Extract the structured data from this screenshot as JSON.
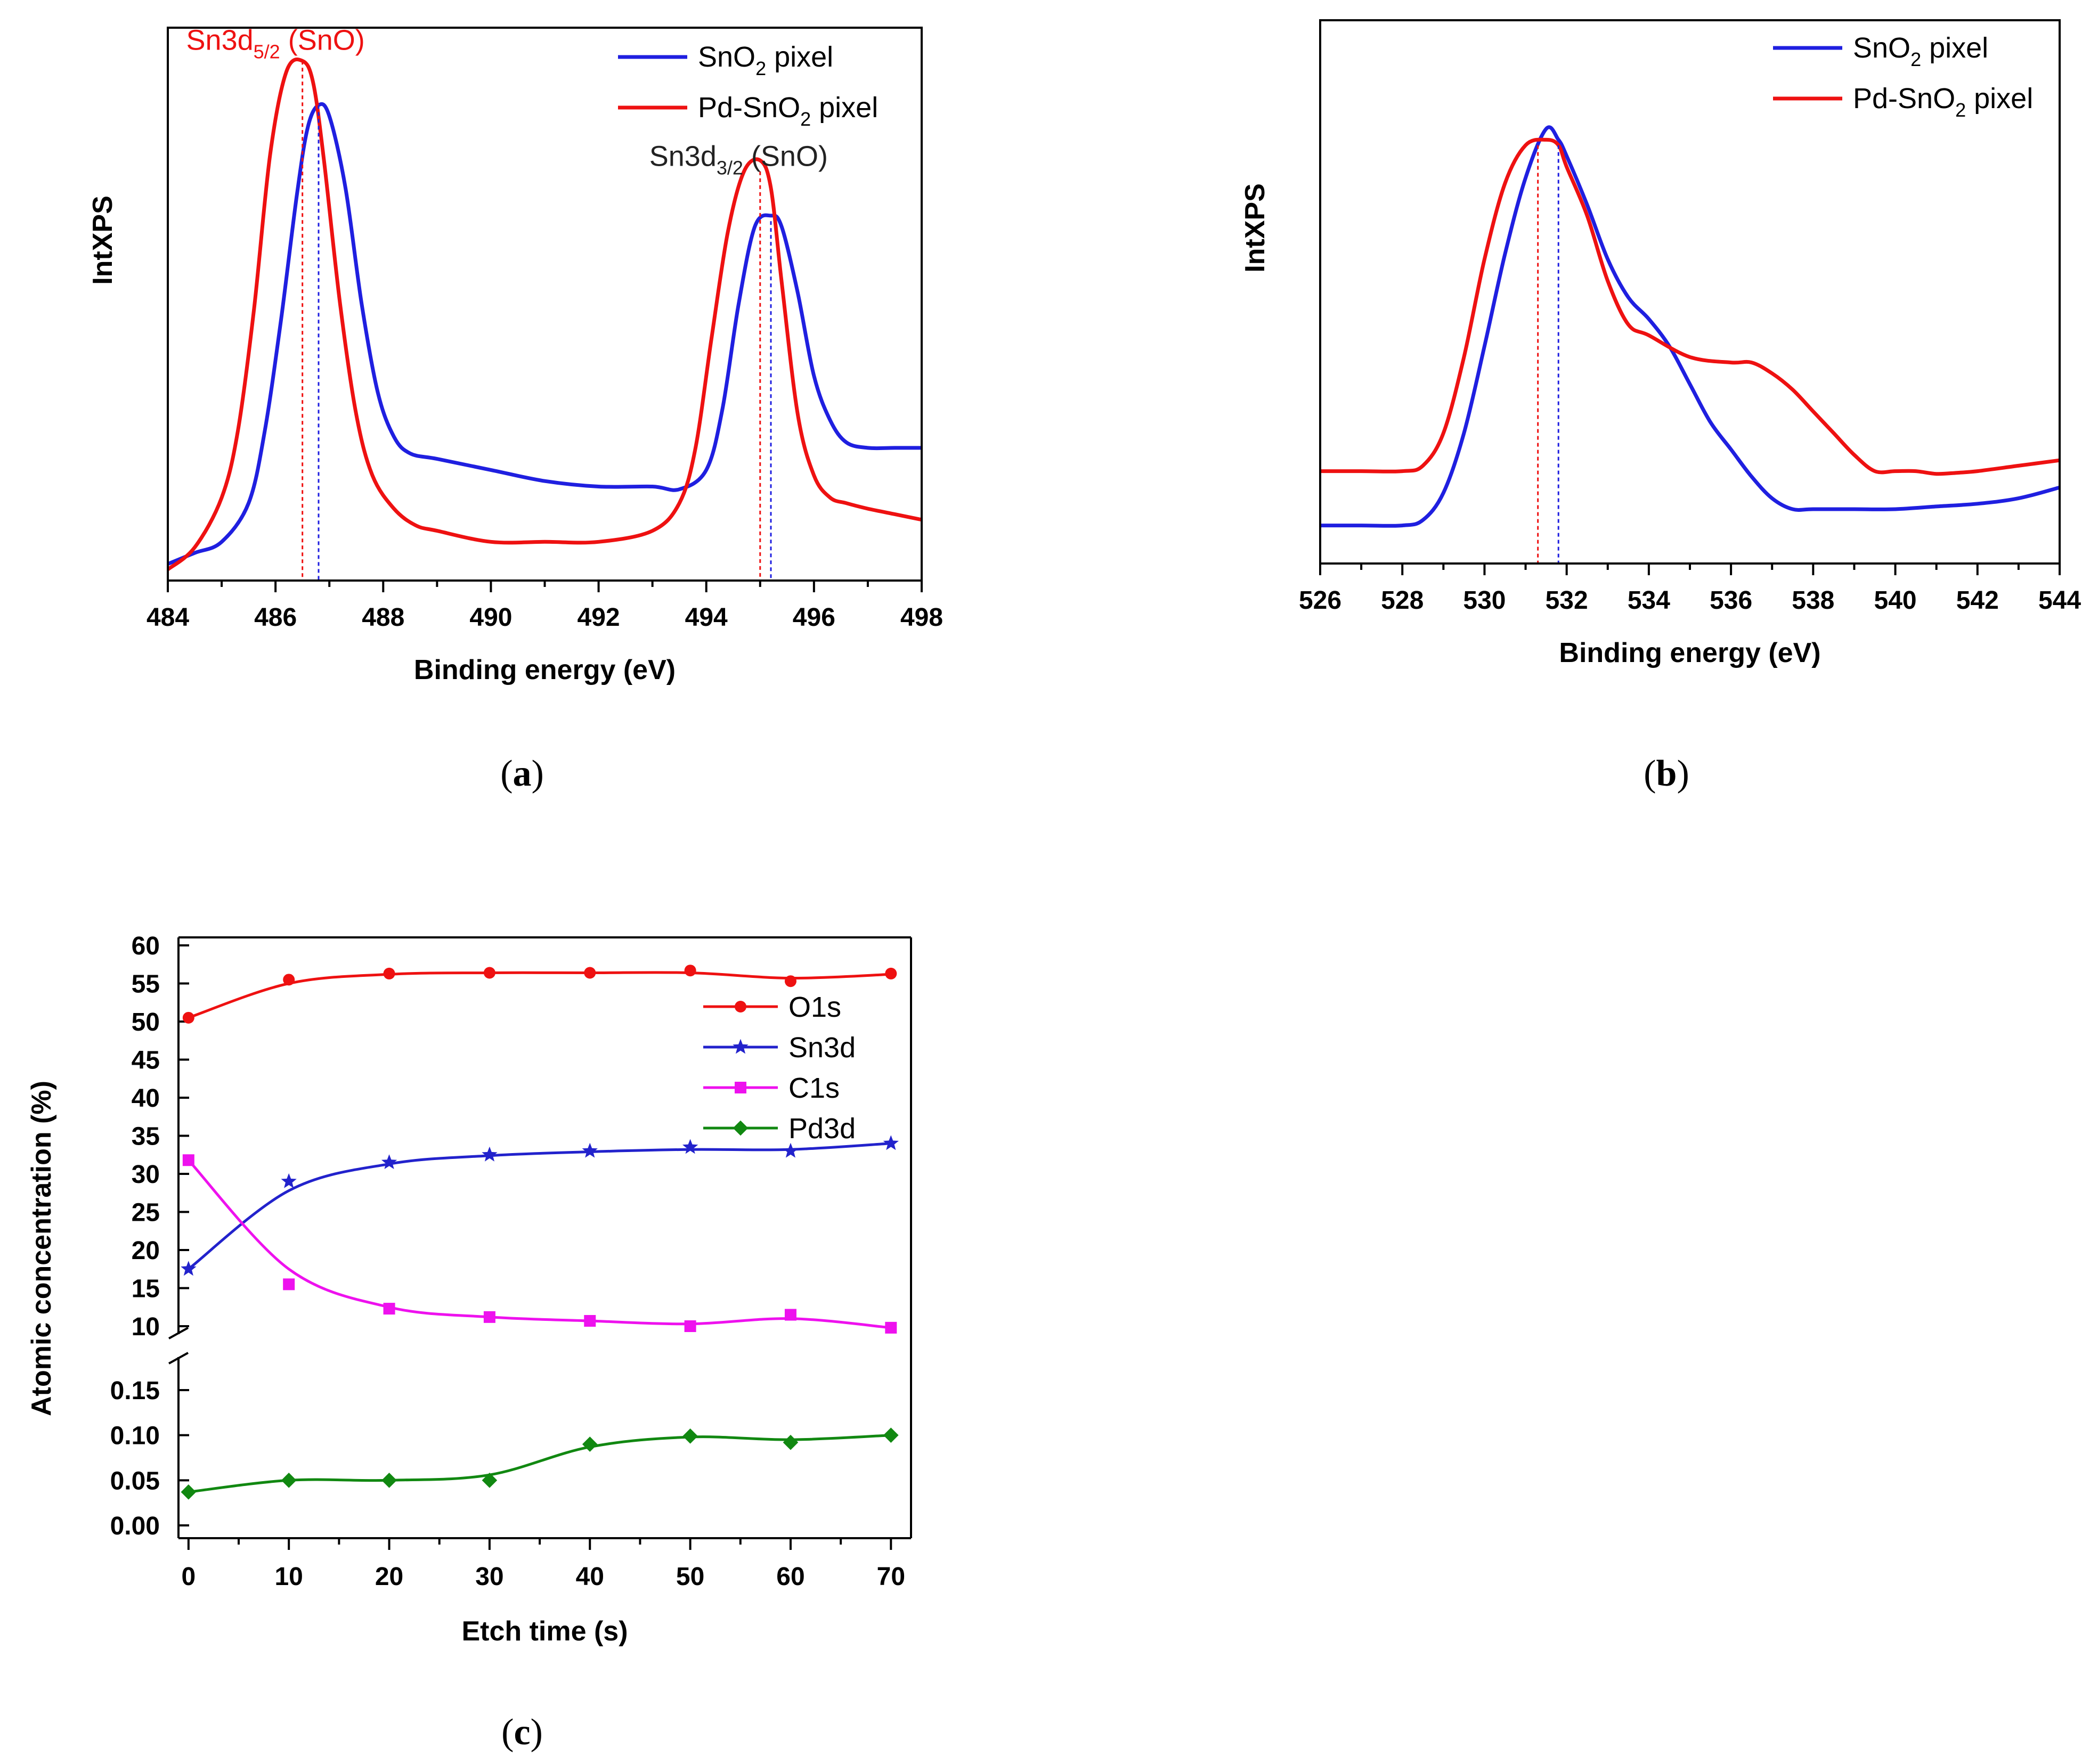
{
  "chart_data": [
    {
      "id": "a",
      "type": "line",
      "panel_label": "a",
      "xlabel": "Binding energy (eV)",
      "ylabel": "IntXPS",
      "xlim": [
        484,
        498
      ],
      "ylim": [
        0,
        100
      ],
      "xticks": [
        484,
        486,
        488,
        490,
        492,
        494,
        496,
        498
      ],
      "colors": {
        "SnO2": "#1f1fe0",
        "PdSnO2": "#ee1111"
      },
      "legend": [
        {
          "pre": "SnO",
          "sub": "2",
          "post": " pixel",
          "color": "#1f1fe0"
        },
        {
          "pre": "Pd-SnO",
          "sub": "2",
          "post": " pixel",
          "color": "#ee1111"
        }
      ],
      "annotations": [
        {
          "pre": "Sn3d",
          "sub": "5/2",
          "post": " (SnO)",
          "x": 486.0,
          "y": 96,
          "color": "#ee1111"
        },
        {
          "pre": "Sn3d",
          "sub": "3/2",
          "post": " (SnO)",
          "x": 494.6,
          "y": 75,
          "color": "#222222"
        }
      ],
      "vlines": [
        {
          "x": 486.5,
          "top": 94,
          "color": "#ee1111"
        },
        {
          "x": 486.8,
          "top": 86,
          "color": "#1f1fe0"
        },
        {
          "x": 495.0,
          "top": 74,
          "color": "#ee1111"
        },
        {
          "x": 495.2,
          "top": 65,
          "color": "#1f1fe0"
        }
      ],
      "series": [
        {
          "name": "SnO2 pixel",
          "color": "#1f1fe0",
          "x": [
            484,
            484.5,
            485,
            485.5,
            485.8,
            486.1,
            486.4,
            486.6,
            486.8,
            487.0,
            487.3,
            487.6,
            487.9,
            488.2,
            488.5,
            489,
            490,
            491,
            492,
            493,
            493.5,
            494,
            494.3,
            494.6,
            494.9,
            495.2,
            495.4,
            495.7,
            496,
            496.3,
            496.6,
            497,
            497.5,
            498
          ],
          "y": [
            3,
            5,
            7,
            14,
            27,
            47,
            70,
            82,
            86,
            84,
            71,
            50,
            34,
            26,
            23,
            22,
            20,
            18,
            17,
            17,
            16.5,
            20,
            31,
            50,
            64,
            66,
            64,
            52,
            37,
            29,
            25,
            24,
            24,
            24
          ]
        },
        {
          "name": "Pd-SnO2 pixel",
          "color": "#ee1111",
          "x": [
            484,
            484.5,
            485,
            485.3,
            485.6,
            485.9,
            486.2,
            486.5,
            486.7,
            486.9,
            487.2,
            487.5,
            487.8,
            488.2,
            488.6,
            489,
            490,
            491,
            492,
            493,
            493.5,
            493.8,
            494.1,
            494.4,
            494.7,
            495.0,
            495.2,
            495.4,
            495.7,
            496,
            496.3,
            496.6,
            497,
            497.5,
            498
          ],
          "y": [
            2,
            6,
            15,
            27,
            49,
            77,
            92,
            94,
            90,
            76,
            50,
            30,
            19,
            13,
            10,
            9,
            7,
            7,
            7,
            9,
            14,
            24,
            44,
            63,
            74,
            76,
            71,
            54,
            30,
            19,
            15,
            14,
            13,
            12,
            11
          ]
        }
      ]
    },
    {
      "id": "b",
      "type": "line",
      "panel_label": "b",
      "xlabel": "Binding energy (eV)",
      "ylabel": "IntXPS",
      "xlim": [
        526,
        544
      ],
      "ylim": [
        0,
        100
      ],
      "xticks": [
        526,
        528,
        530,
        532,
        534,
        536,
        538,
        540,
        542,
        544
      ],
      "colors": {
        "SnO2": "#1f1fe0",
        "PdSnO2": "#ee1111"
      },
      "legend": [
        {
          "pre": "SnO",
          "sub": "2",
          "post": " pixel",
          "color": "#1f1fe0"
        },
        {
          "pre": "Pd-SnO",
          "sub": "2",
          "post": " pixel",
          "color": "#ee1111"
        }
      ],
      "vlines": [
        {
          "x": 531.3,
          "top": 77,
          "color": "#ee1111"
        },
        {
          "x": 531.8,
          "top": 77,
          "color": "#1f1fe0"
        }
      ],
      "series": [
        {
          "name": "SnO2 pixel",
          "color": "#1f1fe0",
          "x": [
            526,
            527,
            528,
            528.5,
            529,
            529.5,
            530,
            530.5,
            531,
            531.5,
            531.8,
            532,
            532.5,
            533,
            533.5,
            534,
            534.5,
            535,
            535.5,
            536,
            536.5,
            537,
            537.5,
            538,
            539,
            540,
            541,
            542,
            543,
            544
          ],
          "y": [
            7,
            7,
            7,
            8,
            13,
            24,
            40,
            57,
            71,
            80,
            78,
            75,
            66,
            56,
            49,
            45,
            40,
            33,
            26,
            21,
            16,
            12,
            10,
            10,
            10,
            10,
            10.5,
            11,
            12,
            14
          ]
        },
        {
          "name": "Pd-SnO2 pixel",
          "color": "#ee1111",
          "x": [
            526,
            527,
            528,
            528.5,
            529,
            529.5,
            530,
            530.5,
            531,
            531.5,
            531.8,
            532,
            532.5,
            533,
            533.5,
            534,
            535,
            536,
            536.5,
            537,
            537.5,
            538,
            538.5,
            539,
            539.5,
            540,
            540.5,
            541,
            541.5,
            542,
            543,
            544
          ],
          "y": [
            17,
            17,
            17,
            18,
            24,
            38,
            56,
            70,
            77,
            78,
            77,
            73,
            64,
            52,
            44,
            42,
            38,
            37,
            37,
            35,
            32,
            28,
            24,
            20,
            17,
            17,
            17,
            16.5,
            16.7,
            17,
            18,
            19
          ]
        }
      ]
    },
    {
      "id": "c",
      "type": "line",
      "panel_label": "c",
      "xlabel": "Etch time (s)",
      "ylabel": "Atomic concentration (%)",
      "xlim": [
        -1,
        72
      ],
      "ylim_upper": [
        9,
        60
      ],
      "ylim_lower": [
        -0.01,
        0.2
      ],
      "xticks": [
        0,
        10,
        20,
        30,
        40,
        50,
        60,
        70
      ],
      "yticks_upper": [
        "60",
        "55",
        "50",
        "45",
        "40",
        "35",
        "30",
        "25",
        "20",
        "15",
        "10"
      ],
      "yticks_lower": [
        "0.15",
        "0.10",
        "0.05",
        "0.00"
      ],
      "legend": [
        {
          "label": "O1s",
          "color": "#ee1111",
          "marker": "circle"
        },
        {
          "label": "Sn3d",
          "color": "#2222cc",
          "marker": "star"
        },
        {
          "label": "C1s",
          "color": "#ee11ee",
          "marker": "square"
        },
        {
          "label": "Pd3d",
          "color": "#118811",
          "marker": "diamond"
        }
      ],
      "x": [
        0,
        10,
        20,
        30,
        40,
        50,
        60,
        70
      ],
      "series": [
        {
          "name": "O1s",
          "color": "#ee1111",
          "marker": "circle",
          "axis": "upper",
          "values": [
            50.5,
            55.5,
            56.3,
            56.4,
            56.4,
            56.7,
            55.3,
            56.3
          ],
          "fit": [
            50.5,
            55.0,
            56.2,
            56.4,
            56.4,
            56.4,
            55.7,
            56.2
          ]
        },
        {
          "name": "Sn3d",
          "color": "#2222cc",
          "marker": "star",
          "axis": "upper",
          "values": [
            17.5,
            29.0,
            31.5,
            32.5,
            33.0,
            33.5,
            33.0,
            34.0
          ],
          "fit": [
            17.5,
            27.8,
            31.3,
            32.4,
            32.9,
            33.2,
            33.2,
            34.0
          ]
        },
        {
          "name": "C1s",
          "color": "#ee11ee",
          "marker": "square",
          "axis": "upper",
          "values": [
            31.8,
            15.5,
            12.3,
            11.2,
            10.7,
            10.0,
            11.5,
            9.8
          ],
          "fit": [
            31.8,
            17.5,
            12.5,
            11.2,
            10.7,
            10.3,
            11.0,
            9.8
          ]
        },
        {
          "name": "Pd3d",
          "color": "#118811",
          "marker": "diamond",
          "axis": "lower",
          "values": [
            0.037,
            0.05,
            0.05,
            0.05,
            0.09,
            0.099,
            0.092,
            0.1
          ],
          "fit": [
            0.037,
            0.05,
            0.05,
            0.056,
            0.087,
            0.098,
            0.095,
            0.1
          ]
        }
      ]
    }
  ]
}
